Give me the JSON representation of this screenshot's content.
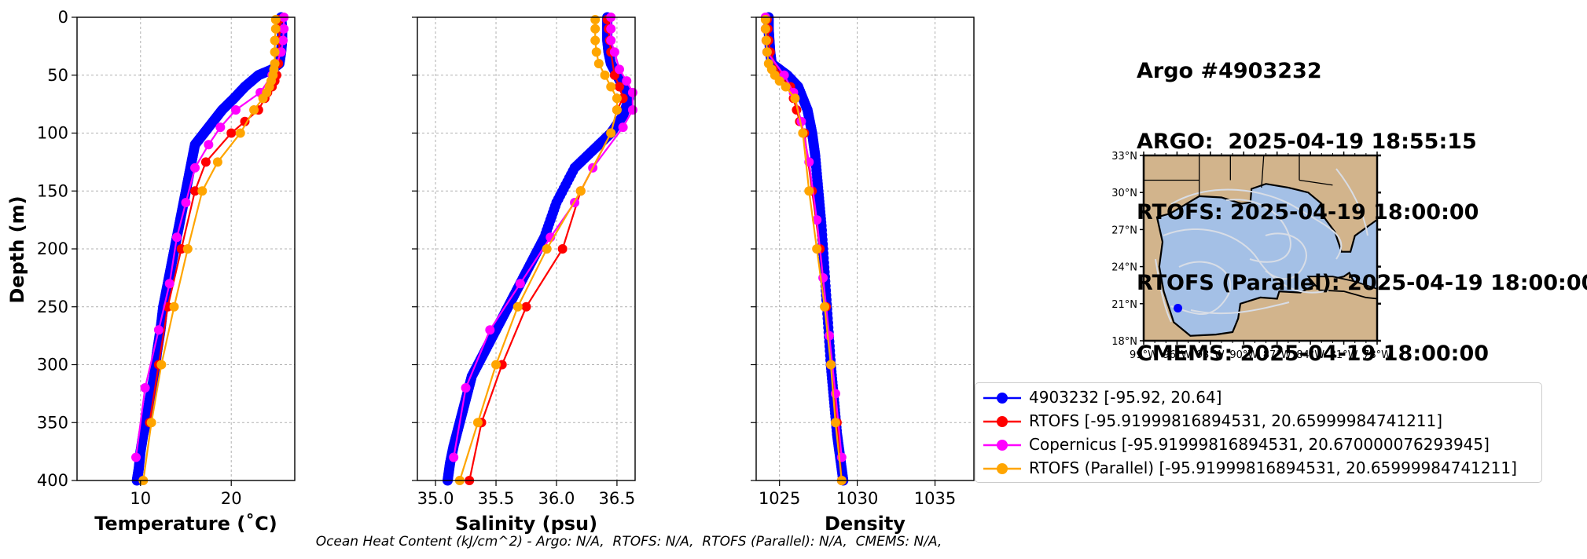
{
  "title": {
    "lines": [
      "Argo #4903232",
      "ARGO:  2025-04-19 18:55:15",
      "RTOFS: 2025-04-19 18:00:00",
      "RTOFS (Parallel): 2025-04-19 18:00:00",
      "CMEMS: 2025-04-19 18:00:00"
    ]
  },
  "footer": "Ocean Heat Content (kJ/cm^2) - Argo: N/A,  RTOFS: N/A,  RTOFS (Parallel): N/A,  CMEMS: N/A,",
  "legend": [
    {
      "label": "4903232 [-95.92, 20.64]",
      "color": "#0000ff"
    },
    {
      "label": "RTOFS [-95.91999816894531, 20.65999984741211]",
      "color": "#ff0000"
    },
    {
      "label": "Copernicus [-95.91999816894531, 20.670000076293945]",
      "color": "#ff00ff"
    },
    {
      "label": "RTOFS (Parallel) [-95.91999816894531, 20.65999984741211]",
      "color": "#ffa500"
    }
  ],
  "chart_data": [
    {
      "type": "line",
      "xlabel": "Temperature (˚C)",
      "ylabel": "Depth (m)",
      "xlim": [
        3,
        27
      ],
      "ylim": [
        400,
        0
      ],
      "xticks": [
        10,
        20
      ],
      "yticks": [
        0,
        50,
        100,
        150,
        200,
        250,
        300,
        350,
        400
      ],
      "grid": true,
      "series": [
        {
          "name": "4903232 [-95.92, 20.64]",
          "color": "#0000ff",
          "dense": true,
          "x": [
            25.5,
            25.6,
            25.6,
            25.5,
            25.3,
            24.5,
            23.0,
            21.5,
            20.3,
            19.0,
            18.0,
            17.0,
            16.0,
            15.5,
            15.0,
            14.5,
            14.0,
            13.5,
            13.0,
            12.5,
            12.2,
            11.8,
            11.5,
            11.0,
            10.6,
            10.3,
            10.0,
            9.8,
            9.6
          ],
          "y": [
            0,
            10,
            20,
            30,
            40,
            45,
            50,
            60,
            70,
            80,
            90,
            100,
            110,
            130,
            150,
            170,
            190,
            210,
            230,
            250,
            270,
            290,
            310,
            330,
            350,
            360,
            375,
            390,
            400
          ]
        },
        {
          "name": "RTOFS [-95.91999816894531, 20.65999984741211]",
          "color": "#ff0000",
          "x": [
            25.3,
            25.3,
            25.3,
            25.3,
            25.2,
            25.0,
            24.8,
            24.5,
            24.0,
            23.7,
            23.0,
            21.5,
            20.0,
            17.2,
            16.0,
            14.5,
            13.0,
            12.0,
            11.0
          ],
          "y": [
            2,
            10,
            20,
            30,
            40,
            50,
            55,
            60,
            65,
            70,
            80,
            90,
            100,
            125,
            150,
            200,
            250,
            300,
            350
          ]
        },
        {
          "name": "Copernicus [-95.91999816894531, 20.670000076293945]",
          "color": "#ff00ff",
          "x": [
            25.8,
            25.8,
            25.7,
            25.5,
            24.5,
            23.2,
            20.5,
            18.8,
            17.5,
            16.0,
            15.0,
            14.0,
            13.2,
            12.0,
            10.5,
            9.5
          ],
          "y": [
            0,
            10,
            20,
            30,
            50,
            65,
            80,
            95,
            110,
            130,
            160,
            190,
            230,
            270,
            320,
            380
          ]
        },
        {
          "name": "RTOFS (Parallel) [-95.91999816894531, 20.65999984741211]",
          "color": "#ffa500",
          "x": [
            24.9,
            24.9,
            24.8,
            24.8,
            24.8,
            24.7,
            24.6,
            24.4,
            24.2,
            23.9,
            23.5,
            22.5,
            21.0,
            18.5,
            16.8,
            15.2,
            13.7,
            12.3,
            11.2,
            10.3
          ],
          "y": [
            2,
            10,
            20,
            30,
            40,
            45,
            50,
            55,
            60,
            65,
            70,
            80,
            100,
            125,
            150,
            200,
            250,
            300,
            350,
            400
          ]
        }
      ]
    },
    {
      "type": "line",
      "xlabel": "Salinity (psu)",
      "ylim": [
        400,
        0
      ],
      "xlim": [
        34.85,
        36.65
      ],
      "xticks": [
        35.0,
        35.5,
        36.0,
        36.5
      ],
      "grid": true,
      "series": [
        {
          "name": "4903232 [-95.92, 20.64]",
          "color": "#0000ff",
          "dense": true,
          "x": [
            36.42,
            36.42,
            36.42,
            36.43,
            36.45,
            36.5,
            36.55,
            36.6,
            36.55,
            36.45,
            36.3,
            36.15,
            36.0,
            35.9,
            35.8,
            35.7,
            35.6,
            35.5,
            35.4,
            35.3,
            35.25,
            35.2,
            35.15,
            35.12,
            35.1
          ],
          "y": [
            0,
            10,
            20,
            30,
            40,
            50,
            60,
            70,
            85,
            100,
            115,
            130,
            160,
            190,
            210,
            230,
            250,
            270,
            290,
            310,
            330,
            350,
            370,
            385,
            400
          ]
        },
        {
          "name": "RTOFS [-95.91999816894531, 20.65999984741211]",
          "color": "#ff0000",
          "x": [
            36.42,
            36.43,
            36.44,
            36.45,
            36.48,
            36.52,
            36.55,
            36.5,
            36.45,
            36.2,
            36.05,
            35.75,
            35.55,
            35.38,
            35.28
          ],
          "y": [
            2,
            10,
            20,
            30,
            50,
            60,
            70,
            80,
            100,
            150,
            200,
            250,
            300,
            350,
            400
          ]
        },
        {
          "name": "Copernicus [-95.91999816894531, 20.670000076293945]",
          "color": "#ff00ff",
          "x": [
            36.45,
            36.45,
            36.45,
            36.48,
            36.52,
            36.58,
            36.63,
            36.63,
            36.55,
            36.3,
            36.15,
            35.95,
            35.7,
            35.45,
            35.25,
            35.15
          ],
          "y": [
            0,
            10,
            20,
            30,
            45,
            55,
            65,
            80,
            95,
            130,
            160,
            190,
            230,
            270,
            320,
            380
          ]
        },
        {
          "name": "RTOFS (Parallel) [-95.91999816894531, 20.65999984741211]",
          "color": "#ffa500",
          "x": [
            36.32,
            36.32,
            36.32,
            36.33,
            36.35,
            36.4,
            36.45,
            36.5,
            36.5,
            36.45,
            36.2,
            35.92,
            35.68,
            35.5,
            35.35,
            35.2
          ],
          "y": [
            2,
            10,
            20,
            30,
            40,
            50,
            60,
            70,
            80,
            100,
            150,
            200,
            250,
            300,
            350,
            400
          ]
        }
      ]
    },
    {
      "type": "line",
      "xlabel": "Density",
      "ylim": [
        400,
        0
      ],
      "xlim": [
        1023.5,
        1037.5
      ],
      "xticks": [
        1025,
        1030,
        1035
      ],
      "grid": true,
      "series": [
        {
          "name": "4903232 [-95.92, 20.64]",
          "color": "#0000ff",
          "dense": true,
          "x": [
            1024.3,
            1024.3,
            1024.35,
            1024.4,
            1024.5,
            1025.5,
            1026.2,
            1026.8,
            1027.1,
            1027.3,
            1027.5,
            1027.7,
            1027.9,
            1028.1,
            1028.3,
            1028.5,
            1028.7,
            1028.9,
            1029.1
          ],
          "y": [
            0,
            10,
            20,
            30,
            40,
            50,
            60,
            80,
            100,
            120,
            150,
            180,
            220,
            260,
            300,
            330,
            360,
            380,
            400
          ]
        },
        {
          "name": "RTOFS [-95.91999816894531, 20.65999984741211]",
          "color": "#ff0000",
          "x": [
            1024.2,
            1024.25,
            1024.3,
            1024.4,
            1025.0,
            1025.7,
            1025.9,
            1026.1,
            1026.3,
            1026.6,
            1027.1,
            1027.6,
            1028.0,
            1028.3,
            1028.7,
            1029.0
          ],
          "y": [
            2,
            10,
            20,
            30,
            50,
            60,
            70,
            80,
            90,
            100,
            150,
            200,
            250,
            300,
            350,
            400
          ]
        },
        {
          "name": "Copernicus [-95.91999816894531, 20.670000076293945]",
          "color": "#ff00ff",
          "x": [
            1024.1,
            1024.1,
            1024.15,
            1024.2,
            1025.3,
            1025.9,
            1026.4,
            1026.9,
            1027.4,
            1027.8,
            1028.2,
            1028.6,
            1029.0
          ],
          "y": [
            0,
            10,
            20,
            30,
            50,
            65,
            90,
            125,
            175,
            225,
            275,
            325,
            380
          ]
        },
        {
          "name": "RTOFS (Parallel) [-95.91999816894531, 20.65999984741211]",
          "color": "#ffa500",
          "x": [
            1024.1,
            1024.1,
            1024.15,
            1024.2,
            1024.3,
            1024.5,
            1024.7,
            1025.0,
            1025.4,
            1026.0,
            1026.5,
            1026.9,
            1027.4,
            1027.9,
            1028.3,
            1028.6,
            1029.0
          ],
          "y": [
            2,
            10,
            20,
            30,
            40,
            45,
            50,
            55,
            60,
            70,
            100,
            150,
            200,
            250,
            300,
            350,
            400
          ]
        }
      ]
    }
  ],
  "map": {
    "lat_ticks": [
      "33°N",
      "30°N",
      "27°N",
      "24°N",
      "21°N",
      "18°N"
    ],
    "lon_ticks": [
      "99°W",
      "96°W",
      "93°W",
      "90°W",
      "87°W",
      "84°W",
      "81°W",
      "78°W"
    ],
    "land_color": "#d2b48c",
    "ocean_color": "#a4c0e6",
    "streamline_color": "#d8dde6",
    "marker": {
      "lon": -95.92,
      "lat": 20.64,
      "color": "#0000ff"
    }
  }
}
